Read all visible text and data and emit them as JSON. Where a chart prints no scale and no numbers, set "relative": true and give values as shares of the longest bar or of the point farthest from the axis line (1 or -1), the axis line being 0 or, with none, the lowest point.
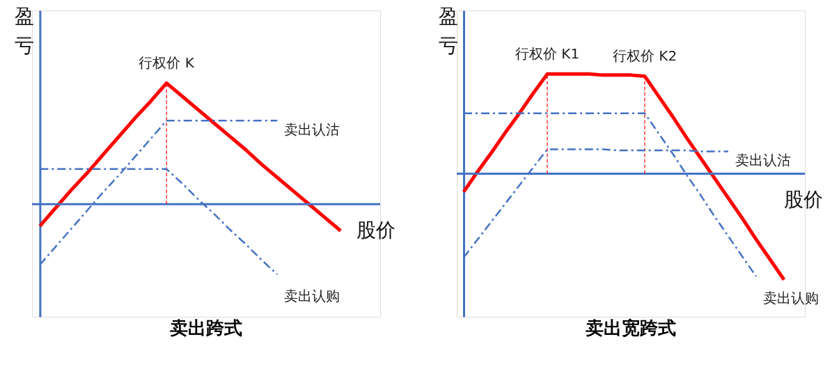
{
  "chart_data": [
    {
      "type": "line",
      "title": "卖出跨式",
      "xlabel": "股价",
      "ylabel": "盈亏",
      "relative": true,
      "grid": false,
      "categories": [
        null,
        null,
        null,
        null,
        null,
        null,
        null,
        null,
        null,
        null,
        null,
        null,
        null,
        null,
        null,
        null,
        null,
        null,
        null,
        null,
        null
      ],
      "series": [
        {
          "color": "#ff0000",
          "values": [
            -0.18,
            -0.03,
            0.12,
            0.26,
            0.41,
            0.56,
            0.71,
            0.85,
            1,
            0.89,
            0.78,
            0.67,
            0.56,
            0.45,
            0.33,
            0.22,
            0.11,
            0,
            -0.11,
            -0.22,
            null
          ],
          "line_style": "solid"
        },
        {
          "name": "卖出认沽",
          "color": "#4472c4",
          "values": [
            -0.5,
            -0.35,
            -0.2,
            -0.05,
            0.1,
            0.24,
            0.39,
            0.54,
            0.69,
            0.69,
            0.69,
            0.69,
            0.69,
            0.69,
            0.69,
            0.69,
            null,
            null,
            null,
            null,
            null
          ],
          "line_style": "dashed"
        },
        {
          "name": "卖出认购",
          "color": "#4472c4",
          "values": [
            0.29,
            0.29,
            0.29,
            0.29,
            0.29,
            0.29,
            0.29,
            0.29,
            0.29,
            0.17,
            0.04,
            -0.08,
            -0.21,
            -0.33,
            -0.46,
            -0.58,
            null,
            null,
            null,
            null,
            null
          ],
          "line_style": "dashed"
        }
      ],
      "annotations": [
        {
          "text": "行权价 K",
          "y": 1
        }
      ],
      "ref_lines": [
        {
          "axis": "y",
          "value": 0,
          "color": "#4472c4"
        }
      ]
    },
    {
      "type": "line",
      "title": "卖出宽跨式",
      "xlabel": "股价",
      "ylabel": "盈亏",
      "relative": true,
      "grid": false,
      "categories": [
        null,
        null,
        null,
        null,
        null,
        null,
        null,
        null,
        null,
        null,
        null,
        null,
        null,
        null,
        null,
        null,
        null,
        null,
        null,
        null,
        null,
        null,
        null,
        null
      ],
      "series": [
        {
          "color": "#ff0000",
          "values": [
            -0.17,
            0.02,
            0.2,
            0.39,
            0.57,
            0.76,
            0.94,
            0.94,
            0.94,
            0.94,
            0.93,
            0.93,
            0.93,
            0.92,
            0.73,
            0.54,
            0.34,
            0.15,
            -0.04,
            -0.23,
            -0.42,
            -0.62,
            -0.81,
            -1
          ],
          "line_style": "solid"
        },
        {
          "name": "卖出认沽",
          "color": "#4472c4",
          "values": [
            -0.79,
            -0.62,
            -0.45,
            -0.28,
            -0.11,
            0.06,
            0.23,
            0.23,
            0.23,
            0.23,
            0.23,
            0.22,
            0.22,
            0.22,
            0.22,
            0.22,
            0.22,
            0.21,
            0.21,
            0.21,
            null,
            null,
            null,
            null
          ],
          "line_style": "dashed"
        },
        {
          "name": "卖出认购",
          "color": "#4472c4",
          "values": [
            0.57,
            0.57,
            0.57,
            0.57,
            0.57,
            0.57,
            0.57,
            0.57,
            0.57,
            0.57,
            0.57,
            0.57,
            0.57,
            0.57,
            0.38,
            0.19,
            -0.01,
            -0.2,
            -0.4,
            -0.59,
            -0.78,
            -0.97,
            null,
            null
          ],
          "line_style": "dashed"
        }
      ],
      "annotations": [
        {
          "text": "行权价 K1",
          "y": 0.94
        },
        {
          "text": "行权价 K2",
          "y": 0.92
        }
      ],
      "ref_lines": [
        {
          "axis": "y",
          "value": 0,
          "color": "#4472c4"
        }
      ]
    }
  ]
}
